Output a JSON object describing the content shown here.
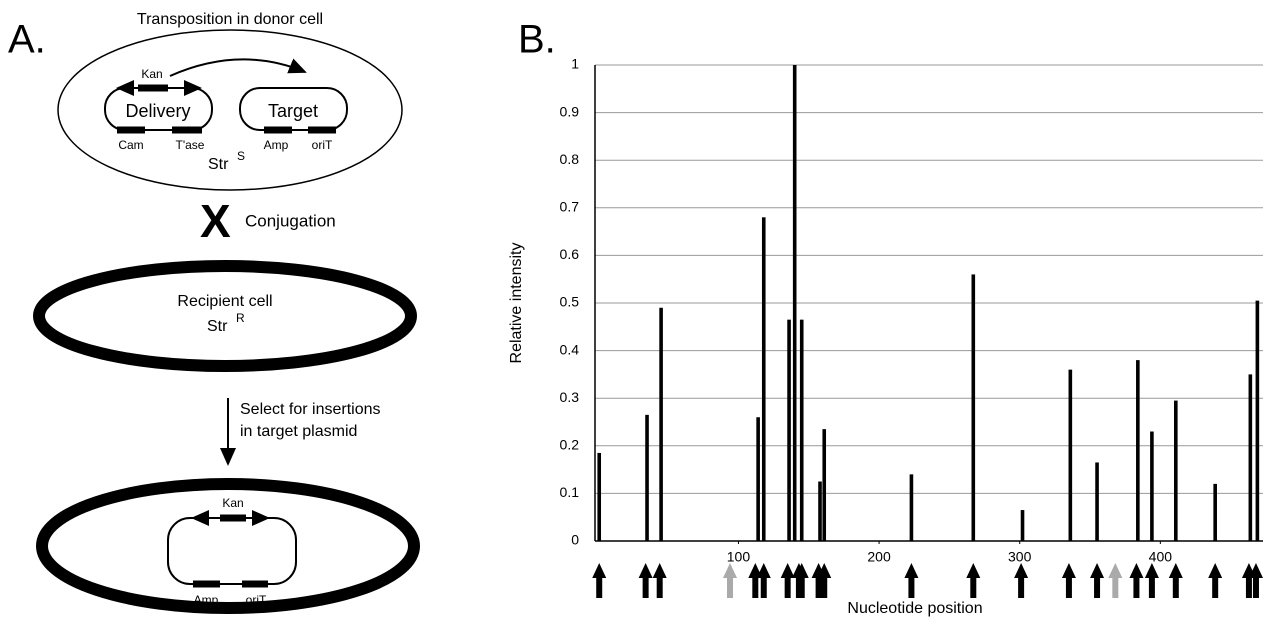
{
  "panel_a": {
    "label": "A.",
    "title": "Transposition in donor cell",
    "donor": {
      "kan": "Kan",
      "delivery": "Delivery",
      "target": "Target",
      "cam": "Cam",
      "tase": "T'ase",
      "amp": "Amp",
      "orit": "oriT",
      "str_base": "Str",
      "str_sup": "S"
    },
    "cross": "X",
    "conjugation": "Conjugation",
    "recipient": {
      "name": "Recipient cell",
      "str_base": "Str",
      "str_sup": "R"
    },
    "select": [
      "Select for insertions",
      "in target plasmid"
    ],
    "product": {
      "kan": "Kan",
      "amp": "Amp",
      "orit": "oriT"
    }
  },
  "chart_data": {
    "type": "bar",
    "panel_label": "B.",
    "ylabel": "Relative intensity",
    "xlabel": "Nucleotide position",
    "x": [
      1,
      35,
      45,
      114,
      118,
      136,
      140,
      145,
      158,
      161,
      223,
      267,
      302,
      336,
      355,
      384,
      394,
      411,
      439,
      464,
      469
    ],
    "values": [
      0.185,
      0.265,
      0.49,
      0.26,
      0.68,
      0.465,
      1.0,
      0.465,
      0.125,
      0.235,
      0.14,
      0.56,
      0.065,
      0.36,
      0.165,
      0.38,
      0.23,
      0.295,
      0.12,
      0.35,
      0.505
    ],
    "color": "#000000",
    "xlim": [
      -2,
      473
    ],
    "ylim": [
      0,
      1
    ],
    "xticks": [
      100,
      200,
      300,
      400
    ],
    "yticks": [
      0,
      0.1,
      0.2,
      0.3,
      0.4,
      0.5,
      0.6,
      0.7,
      0.8,
      0.9,
      1
    ],
    "grid": true,
    "arrows": {
      "x": [
        1,
        34,
        44,
        94,
        112,
        118,
        135,
        143,
        145,
        157,
        161,
        223,
        267,
        301,
        335,
        355,
        368,
        383,
        394,
        411,
        439,
        463,
        468
      ],
      "colors": [
        "#000000",
        "#000000",
        "#000000",
        "#aaaaaa",
        "#000000",
        "#000000",
        "#000000",
        "#000000",
        "#000000",
        "#000000",
        "#000000",
        "#000000",
        "#000000",
        "#000000",
        "#000000",
        "#000000",
        "#aaaaaa",
        "#000000",
        "#000000",
        "#000000",
        "#000000",
        "#000000",
        "#000000"
      ]
    }
  }
}
